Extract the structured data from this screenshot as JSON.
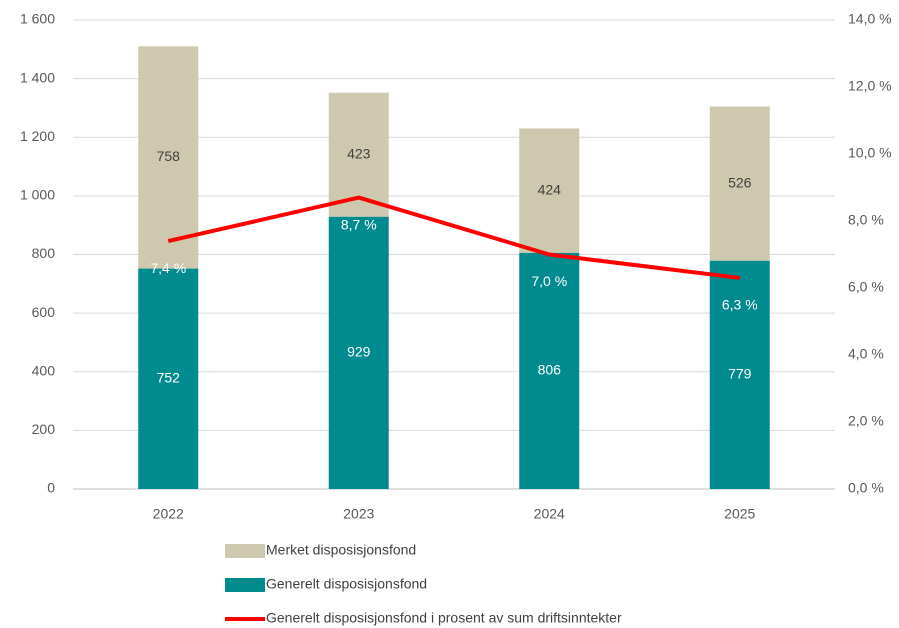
{
  "chart_data": {
    "type": "bar",
    "categories": [
      "2022",
      "2023",
      "2024",
      "2025"
    ],
    "series": [
      {
        "name": "Merket disposisjonsfond",
        "color": "#cdc8ae",
        "values": [
          758,
          423,
          424,
          526
        ]
      },
      {
        "name": "Generelt disposisjonsfond",
        "color": "#008b8e",
        "values": [
          752,
          929,
          806,
          779
        ]
      },
      {
        "name": "Generelt disposisjonsfond i prosent av sum driftsinntekter",
        "type": "line",
        "axis": "y2",
        "color": "#ff0000",
        "values": [
          7.4,
          8.7,
          7.0,
          6.3
        ],
        "value_labels": [
          "7,4 %",
          "8,7 %",
          "7,0 %",
          "6,3 %"
        ]
      }
    ],
    "ylim": [
      0,
      1600
    ],
    "yticks": [
      0,
      200,
      400,
      600,
      800,
      {
        "value": 1000,
        "label": "1 000"
      },
      {
        "value": 1200,
        "label": "1 200"
      },
      {
        "value": 1400,
        "label": "1 400"
      },
      {
        "value": 1600,
        "label": "1 600"
      }
    ],
    "y2lim": [
      0,
      14
    ],
    "y2ticks": [
      {
        "value": 0,
        "label": "0,0 %"
      },
      {
        "value": 2,
        "label": "2,0 %"
      },
      {
        "value": 4,
        "label": "4,0 %"
      },
      {
        "value": 6,
        "label": "6,0 %"
      },
      {
        "value": 8,
        "label": "8,0 %"
      },
      {
        "value": 10,
        "label": "10,0 %"
      },
      {
        "value": 12,
        "label": "12,0 %"
      },
      {
        "value": 14,
        "label": "14,0 %"
      }
    ],
    "grid": true
  }
}
